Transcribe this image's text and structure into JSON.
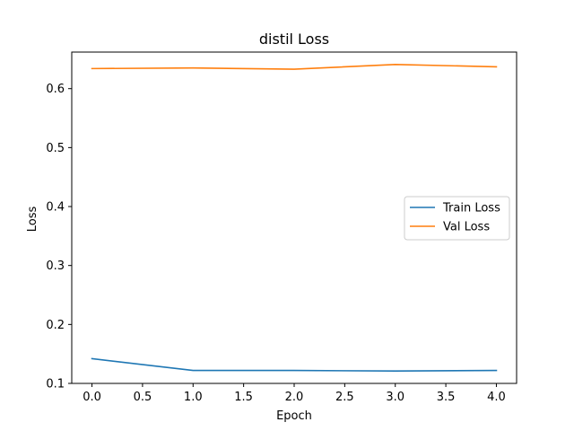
{
  "chart_data": {
    "type": "line",
    "title": "distil Loss",
    "xlabel": "Epoch",
    "ylabel": "Loss",
    "xlim": [
      -0.2,
      4.2
    ],
    "ylim": [
      0.1,
      0.662
    ],
    "xticks": [
      "0.0",
      "0.5",
      "1.0",
      "1.5",
      "2.0",
      "2.5",
      "3.0",
      "3.5",
      "4.0"
    ],
    "yticks": [
      "0.1",
      "0.2",
      "0.3",
      "0.4",
      "0.5",
      "0.6"
    ],
    "x": [
      0,
      1,
      2,
      3,
      4
    ],
    "series": [
      {
        "name": "Train Loss",
        "color": "#1f77b4",
        "values": [
          0.142,
          0.122,
          0.122,
          0.121,
          0.122
        ]
      },
      {
        "name": "Val Loss",
        "color": "#ff7f0e",
        "values": [
          0.634,
          0.635,
          0.633,
          0.641,
          0.637
        ]
      }
    ],
    "legend_position": "center-right",
    "grid": false
  }
}
